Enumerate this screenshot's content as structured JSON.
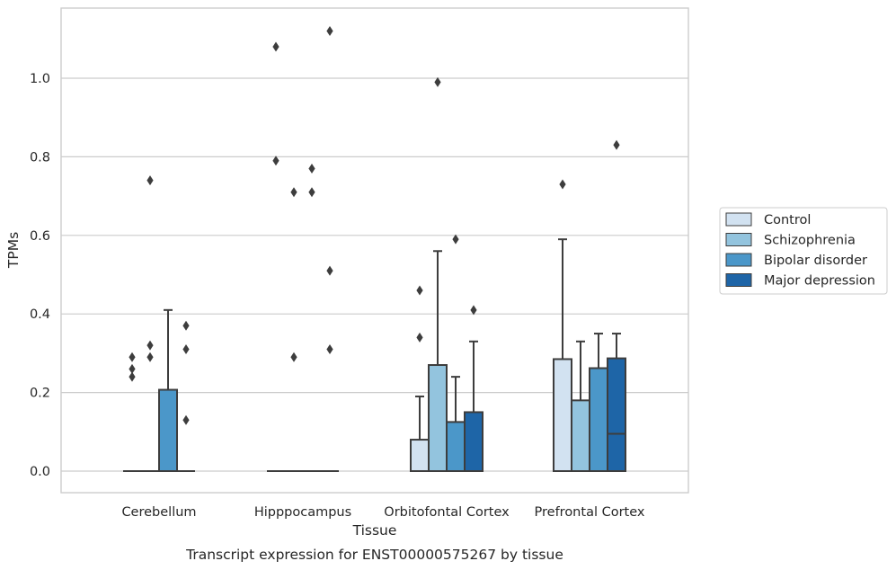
{
  "chart_data": {
    "type": "box",
    "xlabel": "Tissue",
    "ylabel": "TPMs",
    "caption": "Transcript expression for ENST00000575267 by tissue",
    "ylim": [
      -0.055,
      1.17
    ],
    "yticks": [
      "0.0",
      "0.2",
      "0.4",
      "0.6",
      "0.8",
      "1.0"
    ],
    "grid": "horizontal",
    "legend_position": "right",
    "categories": [
      "Cerebellum",
      "Hipppocampus",
      "Orbitofontal Cortex",
      "Prefrontal Cortex"
    ],
    "series": [
      {
        "name": "Control",
        "color": "#d2e2f1",
        "boxes": [
          {
            "q1": 0.0,
            "median": 0.0,
            "q3": 0.0,
            "whisker_low": 0.0,
            "whisker_high": 0.0,
            "outliers": [
              0.24,
              0.26,
              0.29
            ]
          },
          {
            "q1": 0.0,
            "median": 0.0,
            "q3": 0.0,
            "whisker_low": 0.0,
            "whisker_high": 0.0,
            "outliers": [
              0.79,
              1.08
            ]
          },
          {
            "q1": 0.0,
            "median": 0.0,
            "q3": 0.08,
            "whisker_low": 0.0,
            "whisker_high": 0.19,
            "outliers": [
              0.34,
              0.46
            ]
          },
          {
            "q1": 0.0,
            "median": 0.0,
            "q3": 0.285,
            "whisker_low": 0.0,
            "whisker_high": 0.59,
            "outliers": [
              0.73
            ]
          }
        ]
      },
      {
        "name": "Schizophrenia",
        "color": "#93c4de",
        "boxes": [
          {
            "q1": 0.0,
            "median": 0.0,
            "q3": 0.0,
            "whisker_low": 0.0,
            "whisker_high": 0.0,
            "outliers": [
              0.29,
              0.32,
              0.74
            ]
          },
          {
            "q1": 0.0,
            "median": 0.0,
            "q3": 0.0,
            "whisker_low": 0.0,
            "whisker_high": 0.0,
            "outliers": [
              0.29,
              0.71
            ]
          },
          {
            "q1": 0.0,
            "median": 0.0,
            "q3": 0.27,
            "whisker_low": 0.0,
            "whisker_high": 0.56,
            "outliers": [
              0.99
            ]
          },
          {
            "q1": 0.0,
            "median": 0.0,
            "q3": 0.18,
            "whisker_low": 0.0,
            "whisker_high": 0.33,
            "outliers": []
          }
        ]
      },
      {
        "name": "Bipolar disorder",
        "color": "#4b97c9",
        "boxes": [
          {
            "q1": 0.0,
            "median": 0.0,
            "q3": 0.207,
            "whisker_low": 0.0,
            "whisker_high": 0.41,
            "outliers": []
          },
          {
            "q1": 0.0,
            "median": 0.0,
            "q3": 0.0,
            "whisker_low": 0.0,
            "whisker_high": 0.0,
            "outliers": [
              0.71,
              0.77
            ]
          },
          {
            "q1": 0.0,
            "median": 0.0,
            "q3": 0.125,
            "whisker_low": 0.0,
            "whisker_high": 0.24,
            "outliers": [
              0.59
            ]
          },
          {
            "q1": 0.0,
            "median": 0.0,
            "q3": 0.262,
            "whisker_low": 0.0,
            "whisker_high": 0.35,
            "outliers": []
          }
        ]
      },
      {
        "name": "Major depression",
        "color": "#1e65a7",
        "boxes": [
          {
            "q1": 0.0,
            "median": 0.0,
            "q3": 0.0,
            "whisker_low": 0.0,
            "whisker_high": 0.0,
            "outliers": [
              0.13,
              0.31,
              0.37
            ]
          },
          {
            "q1": 0.0,
            "median": 0.0,
            "q3": 0.0,
            "whisker_low": 0.0,
            "whisker_high": 0.0,
            "outliers": [
              0.31,
              0.51,
              1.12
            ]
          },
          {
            "q1": 0.0,
            "median": 0.0,
            "q3": 0.15,
            "whisker_low": 0.0,
            "whisker_high": 0.33,
            "outliers": [
              0.41
            ]
          },
          {
            "q1": 0.0,
            "median": 0.095,
            "q3": 0.287,
            "whisker_low": 0.0,
            "whisker_high": 0.35,
            "outliers": [
              0.83
            ]
          }
        ]
      }
    ]
  }
}
